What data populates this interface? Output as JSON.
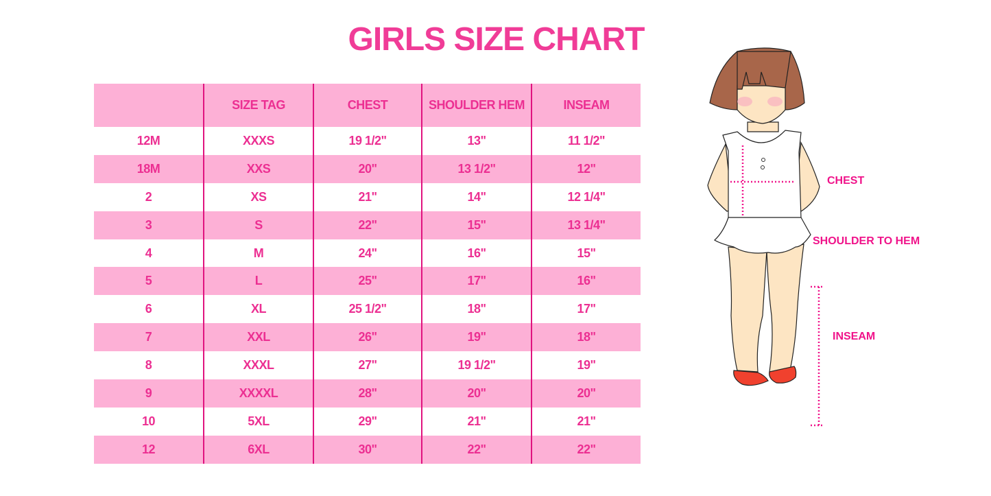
{
  "title": "GIRLS SIZE CHART",
  "table": {
    "headers": [
      "",
      "SIZE TAG",
      "CHEST",
      "SHOULDER HEM",
      "INSEAM"
    ],
    "rows": [
      [
        "12M",
        "XXXS",
        "19 1/2\"",
        "13\"",
        "11 1/2\""
      ],
      [
        "18M",
        "XXS",
        "20\"",
        "13 1/2\"",
        "12\""
      ],
      [
        "2",
        "XS",
        "21\"",
        "14\"",
        "12 1/4\""
      ],
      [
        "3",
        "S",
        "22\"",
        "15\"",
        "13 1/4\""
      ],
      [
        "4",
        "M",
        "24\"",
        "16\"",
        "15\""
      ],
      [
        "5",
        "L",
        "25\"",
        "17\"",
        "16\""
      ],
      [
        "6",
        "XL",
        "25 1/2\"",
        "18\"",
        "17\""
      ],
      [
        "7",
        "XXL",
        "26\"",
        "19\"",
        "18\""
      ],
      [
        "8",
        "XXXL",
        "27\"",
        "19 1/2\"",
        "19\""
      ],
      [
        "9",
        "XXXXL",
        "28\"",
        "20\"",
        "20\""
      ],
      [
        "10",
        "5XL",
        "29\"",
        "21\"",
        "21\""
      ],
      [
        "12",
        "6XL",
        "30\"",
        "22\"",
        "22\""
      ]
    ]
  },
  "figure": {
    "labels": {
      "chest": "CHEST",
      "shoulder": "SHOULDER TO HEM",
      "inseam": "INSEAM"
    }
  },
  "colors": {
    "accent": "#f03c97",
    "row_pink": "#fdb0d6",
    "divider": "#e0137f"
  }
}
